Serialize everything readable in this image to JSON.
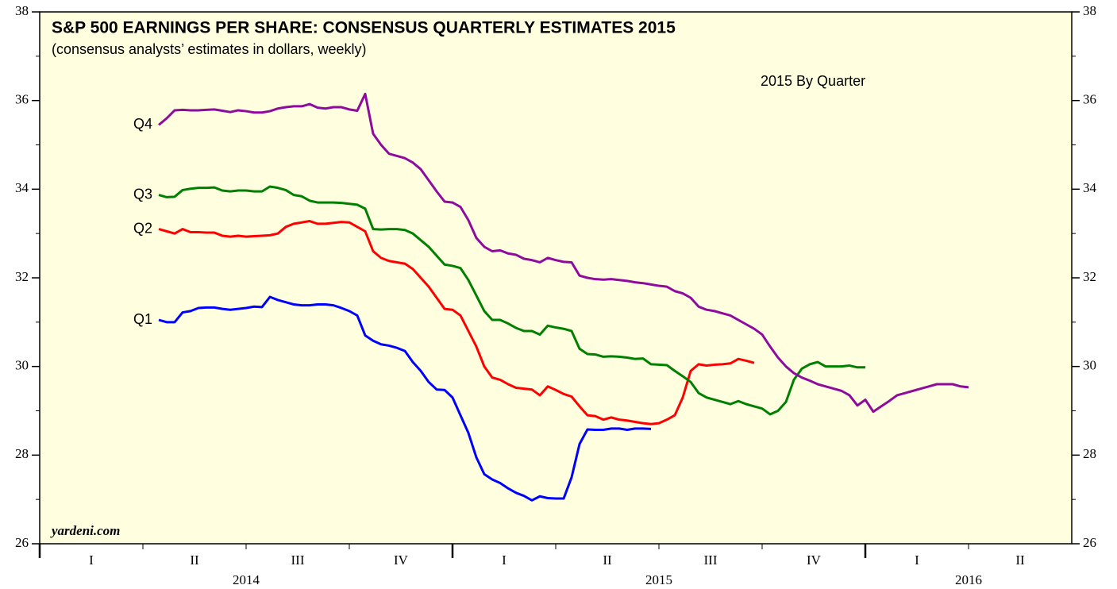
{
  "chart_data": {
    "type": "line",
    "title": "S&P 500 EARNINGS PER SHARE: CONSENSUS QUARTERLY ESTIMATES 2015",
    "subtitle": "(consensus analysts’ estimates in dollars, weekly)",
    "annotation": "2015 By Quarter",
    "source": "yardeni.com",
    "ylim": [
      26,
      38
    ],
    "yticks": [
      26,
      28,
      30,
      32,
      34,
      36,
      38
    ],
    "y_minor_ticks": [
      27,
      29,
      31,
      33,
      35,
      37
    ],
    "xlim": [
      0,
      130
    ],
    "xticks": [
      {
        "value": 6.5,
        "label": "I"
      },
      {
        "value": 19.5,
        "label": "II"
      },
      {
        "value": 32.5,
        "label": "III"
      },
      {
        "value": 45.5,
        "label": "IV"
      },
      {
        "value": 58.5,
        "label": "I"
      },
      {
        "value": 71.5,
        "label": "II"
      },
      {
        "value": 84.5,
        "label": "III"
      },
      {
        "value": 97.5,
        "label": "IV"
      },
      {
        "value": 110.5,
        "label": "I"
      },
      {
        "value": 123.5,
        "label": "II"
      }
    ],
    "year_ticks": [
      {
        "value": 26,
        "label": "2014"
      },
      {
        "value": 78,
        "label": "2015"
      },
      {
        "value": 117,
        "label": "2016"
      }
    ],
    "x_major_ticks": [
      0,
      52,
      104
    ],
    "x_minor_ticks": [
      13,
      26,
      39,
      65,
      78,
      91,
      117
    ],
    "x": [
      15,
      16,
      17,
      18,
      19,
      20,
      21,
      22,
      23,
      24,
      25,
      26,
      27,
      28,
      29,
      30,
      31,
      32,
      33,
      34,
      35,
      36,
      37,
      38,
      39,
      40,
      41,
      42,
      43,
      44,
      45,
      46,
      47,
      48,
      49,
      50,
      51,
      52,
      53,
      54,
      55,
      56,
      57,
      58,
      59,
      60,
      61,
      62,
      63,
      64,
      65,
      66,
      67,
      68,
      69,
      70,
      71,
      72,
      73,
      74,
      75,
      76,
      77,
      78,
      79,
      80,
      81,
      82,
      83,
      84,
      85,
      86,
      87,
      88,
      89,
      90,
      91,
      92,
      93,
      94,
      95,
      96,
      97,
      98,
      99,
      100,
      101,
      102,
      103,
      104,
      105,
      106,
      107,
      108,
      109,
      110,
      111,
      112,
      113,
      114,
      115,
      116,
      117
    ],
    "series": [
      {
        "name": "Q1",
        "color": "#0000ff",
        "values": [
          31.05,
          31.0,
          31.0,
          31.22,
          31.25,
          31.32,
          31.33,
          31.33,
          31.3,
          31.28,
          31.3,
          31.32,
          31.35,
          31.34,
          31.57,
          31.5,
          31.45,
          31.4,
          31.38,
          31.38,
          31.4,
          31.4,
          31.38,
          31.32,
          31.25,
          31.15,
          30.7,
          30.58,
          30.5,
          30.47,
          30.42,
          30.35,
          30.1,
          29.9,
          29.65,
          29.48,
          29.47,
          29.3,
          28.9,
          28.5,
          27.95,
          27.57,
          27.45,
          27.37,
          27.25,
          27.15,
          27.08,
          26.98,
          27.07,
          27.03,
          27.02,
          27.02,
          27.5,
          28.25,
          28.58,
          28.57,
          28.57,
          28.6,
          28.6,
          28.57,
          28.6,
          28.6,
          28.59,
          null,
          null,
          null,
          null,
          null,
          null,
          null,
          null,
          null,
          null,
          null,
          null,
          null,
          null,
          null,
          null,
          null,
          null,
          null,
          null,
          null,
          null,
          null,
          null,
          null,
          null,
          null,
          null,
          null,
          null,
          null,
          null,
          null,
          null,
          null,
          null,
          null,
          null,
          null,
          null
        ]
      },
      {
        "name": "Q2",
        "color": "#ff0000",
        "values": [
          33.1,
          33.05,
          33.0,
          33.1,
          33.03,
          33.03,
          33.02,
          33.02,
          32.95,
          32.93,
          32.95,
          32.93,
          32.94,
          32.95,
          32.96,
          33.0,
          33.15,
          33.22,
          33.25,
          33.28,
          33.22,
          33.22,
          33.24,
          33.26,
          33.25,
          33.15,
          33.05,
          32.6,
          32.45,
          32.38,
          32.35,
          32.32,
          32.2,
          32.0,
          31.8,
          31.55,
          31.3,
          31.28,
          31.15,
          30.8,
          30.45,
          30.0,
          29.75,
          29.7,
          29.6,
          29.52,
          29.5,
          29.48,
          29.35,
          29.55,
          29.47,
          29.38,
          29.32,
          29.1,
          28.9,
          28.88,
          28.8,
          28.85,
          28.8,
          28.78,
          28.75,
          28.72,
          28.7,
          28.72,
          28.8,
          28.9,
          29.3,
          29.9,
          30.05,
          30.02,
          30.04,
          30.05,
          30.07,
          30.17,
          30.13,
          30.08,
          null,
          null,
          null,
          null,
          null,
          null,
          null,
          null,
          null,
          null,
          null,
          null,
          null,
          null,
          null,
          null,
          null,
          null,
          null,
          null,
          null,
          null,
          null,
          null,
          null,
          null,
          null
        ]
      },
      {
        "name": "Q3",
        "color": "#008000",
        "values": [
          33.87,
          33.82,
          33.83,
          33.98,
          34.01,
          34.03,
          34.03,
          34.04,
          33.97,
          33.95,
          33.97,
          33.97,
          33.95,
          33.95,
          34.06,
          34.03,
          33.98,
          33.87,
          33.84,
          33.74,
          33.7,
          33.7,
          33.7,
          33.69,
          33.67,
          33.65,
          33.56,
          33.1,
          33.09,
          33.1,
          33.1,
          33.08,
          33.0,
          32.85,
          32.7,
          32.5,
          32.3,
          32.27,
          32.22,
          31.95,
          31.6,
          31.25,
          31.05,
          31.05,
          30.97,
          30.87,
          30.8,
          30.8,
          30.72,
          30.92,
          30.88,
          30.85,
          30.8,
          30.4,
          30.28,
          30.27,
          30.22,
          30.23,
          30.22,
          30.2,
          30.17,
          30.18,
          30.05,
          30.04,
          30.03,
          29.9,
          29.78,
          29.65,
          29.4,
          29.3,
          29.25,
          29.2,
          29.15,
          29.22,
          29.15,
          29.1,
          29.05,
          28.92,
          29.0,
          29.2,
          29.7,
          29.95,
          30.05,
          30.1,
          30.0,
          30.0,
          30.0,
          30.02,
          29.98,
          29.98,
          null,
          null,
          null,
          null,
          null,
          null,
          null,
          null,
          null,
          null,
          null,
          null,
          null
        ]
      },
      {
        "name": "Q4",
        "color": "#8e0b9e",
        "values": [
          35.45,
          35.6,
          35.78,
          35.79,
          35.78,
          35.78,
          35.79,
          35.8,
          35.77,
          35.74,
          35.78,
          35.76,
          35.73,
          35.73,
          35.76,
          35.82,
          35.85,
          35.87,
          35.87,
          35.92,
          35.84,
          35.82,
          35.85,
          35.85,
          35.8,
          35.77,
          36.15,
          35.25,
          35.0,
          34.8,
          34.75,
          34.7,
          34.6,
          34.45,
          34.2,
          33.95,
          33.72,
          33.7,
          33.6,
          33.3,
          32.9,
          32.7,
          32.6,
          32.62,
          32.55,
          32.52,
          32.43,
          32.4,
          32.35,
          32.45,
          32.4,
          32.36,
          32.35,
          32.05,
          32.0,
          31.97,
          31.96,
          31.97,
          31.95,
          31.93,
          31.9,
          31.88,
          31.85,
          31.82,
          31.8,
          31.7,
          31.65,
          31.55,
          31.35,
          31.28,
          31.25,
          31.2,
          31.15,
          31.05,
          30.95,
          30.85,
          30.72,
          30.45,
          30.2,
          30.0,
          29.85,
          29.75,
          29.68,
          29.6,
          29.55,
          29.5,
          29.45,
          29.35,
          29.12,
          29.25,
          28.98,
          29.1,
          29.22,
          29.35,
          29.4,
          29.45,
          29.5,
          29.55,
          29.6,
          29.6,
          29.6,
          29.55,
          29.53
        ]
      }
    ]
  }
}
